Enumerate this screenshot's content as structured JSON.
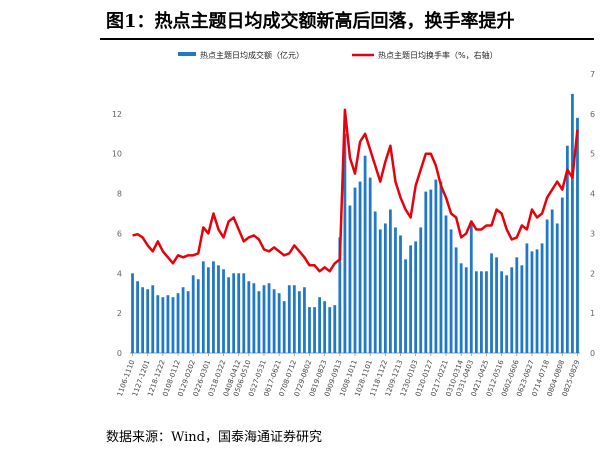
{
  "title": "图1：热点主题日均成交额新高后回落，换手率提升",
  "source": "数据来源：Wind，国泰海通证券研究",
  "chart_data": {
    "type": "bar+line",
    "x_labels": [
      "1106-1110",
      "1127-1201",
      "1218-1222",
      "0108-0112",
      "0129-0202",
      "0226-0301",
      "0318-0322",
      "0408-0412",
      "0506-0510",
      "0527-0531",
      "0617-0621",
      "0708-0712",
      "0729-0802",
      "0819-0823",
      "0909-0913",
      "1008-1011",
      "1028-1101",
      "1118-1122",
      "1209-1213",
      "1230-0103",
      "0120-0127",
      "0217-0221",
      "0310-0314",
      "0331-0403",
      "0421-0425",
      "0512-0516",
      "0602-0606",
      "0623-0627",
      "0714-0718",
      "0804-0808",
      "0825-0829"
    ],
    "left_axis": {
      "ticks": [
        "0",
        "2",
        "4",
        "6",
        "8",
        "10",
        "12"
      ],
      "ylim": [
        0,
        14
      ]
    },
    "right_axis": {
      "ticks": [
        "0",
        "1",
        "2",
        "3",
        "4",
        "5",
        "6",
        "7"
      ],
      "ylim": [
        0,
        7
      ]
    },
    "series": [
      {
        "name": "热点主题日均成交额（亿元）",
        "type": "bar",
        "axis": "left",
        "color": "#1f78c8",
        "values": [
          4.0,
          3.6,
          3.3,
          3.2,
          3.4,
          2.9,
          2.8,
          2.9,
          2.8,
          3.0,
          3.3,
          3.1,
          3.9,
          3.7,
          4.6,
          4.3,
          4.6,
          4.4,
          4.2,
          3.8,
          4.0,
          4.0,
          4.0,
          3.6,
          3.5,
          3.1,
          3.4,
          3.5,
          3.2,
          3.0,
          2.6,
          3.4,
          3.4,
          3.1,
          3.3,
          2.3,
          2.3,
          2.8,
          2.6,
          2.3,
          2.4,
          5.8,
          11.0,
          7.4,
          8.3,
          8.6,
          9.9,
          8.8,
          7.1,
          6.2,
          6.5,
          7.2,
          6.3,
          5.9,
          4.7,
          5.4,
          5.6,
          6.3,
          8.1,
          8.2,
          8.7,
          8.6,
          6.9,
          6.2,
          5.3,
          4.5,
          4.3,
          6.6,
          4.1,
          4.1,
          4.1,
          5.0,
          4.8,
          4.1,
          3.9,
          4.3,
          4.8,
          4.4,
          5.5,
          5.1,
          5.2,
          5.5,
          6.7,
          7.2,
          6.5,
          7.8,
          10.4,
          13.0,
          11.8
        ]
      },
      {
        "name": "热点主题日均换手率（%，右轴）",
        "type": "line",
        "axis": "right",
        "color": "#e8000b",
        "values": [
          2.95,
          2.98,
          2.9,
          2.7,
          2.55,
          2.8,
          2.55,
          2.4,
          2.25,
          2.45,
          2.4,
          2.45,
          2.45,
          2.5,
          3.15,
          3.0,
          3.5,
          3.1,
          2.9,
          3.3,
          3.4,
          3.1,
          2.8,
          2.9,
          2.95,
          2.85,
          2.6,
          2.55,
          2.65,
          2.55,
          2.45,
          2.5,
          2.7,
          2.55,
          2.4,
          2.2,
          2.2,
          2.05,
          2.15,
          2.05,
          2.25,
          2.35,
          6.1,
          4.9,
          4.5,
          5.3,
          5.5,
          5.1,
          4.7,
          4.3,
          4.8,
          5.2,
          4.3,
          3.9,
          3.6,
          3.4,
          4.2,
          4.6,
          5.0,
          5.0,
          4.7,
          4.2,
          3.9,
          3.5,
          3.4,
          2.9,
          3.0,
          3.3,
          3.1,
          3.1,
          3.2,
          3.2,
          3.6,
          3.5,
          3.1,
          2.85,
          2.9,
          3.2,
          3.1,
          3.6,
          3.4,
          3.5,
          3.9,
          4.1,
          4.3,
          4.1,
          4.6,
          4.4,
          5.6
        ]
      }
    ]
  }
}
